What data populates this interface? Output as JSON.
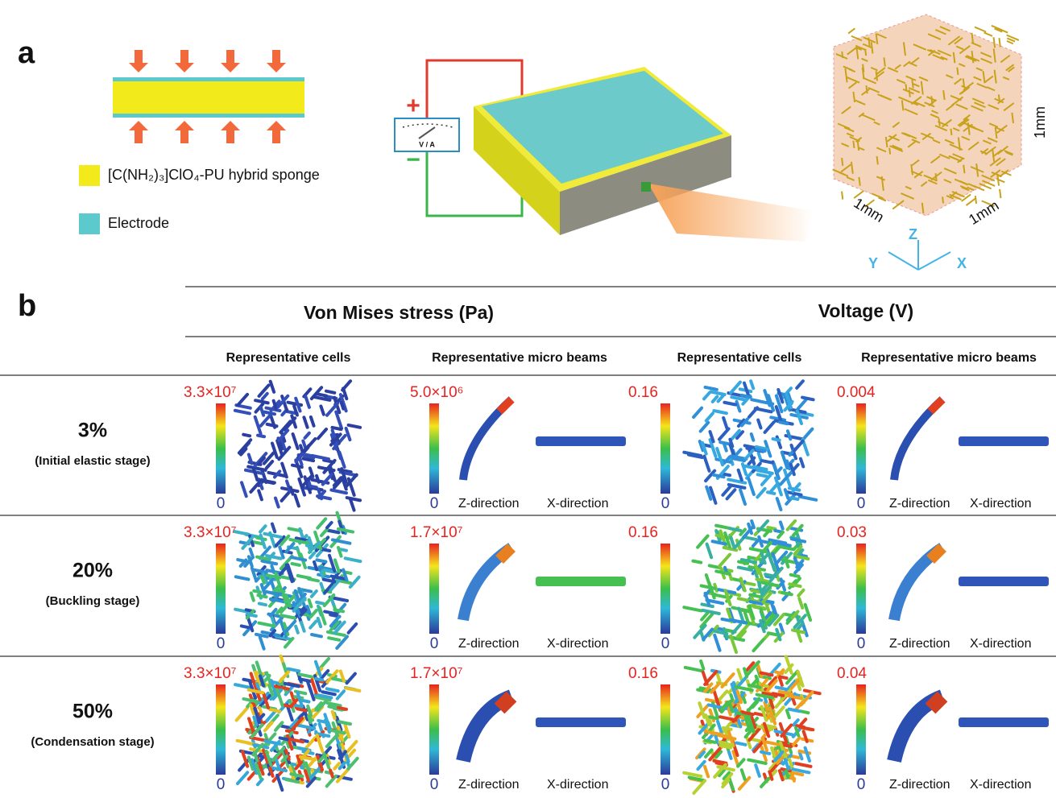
{
  "panel_a": {
    "label": "a",
    "legend": [
      "[C(NH₂)₃]ClO₄-PU hybrid sponge",
      "Electrode"
    ],
    "meter": {
      "plus": "+",
      "minus": "−",
      "label": "V / A"
    },
    "cube": {
      "edges": [
        "1mm",
        "1mm",
        "1mm"
      ],
      "axes": [
        "Z",
        "Y",
        "X"
      ]
    }
  },
  "panel_b": {
    "label": "b",
    "groups": [
      "Von Mises stress (Pa)",
      "Voltage (V)"
    ],
    "columns": [
      "Representative cells",
      "Representative micro beams",
      "Representative cells",
      "Representative micro beams"
    ],
    "directions": [
      "Z-direction",
      "X-direction"
    ],
    "rows": [
      {
        "strain": "3%",
        "stage": "(Initial elastic stage)",
        "scales": [
          {
            "max": "3.3×10⁷",
            "min": "0"
          },
          {
            "max": "5.0×10⁶",
            "min": "0"
          },
          {
            "max": "0.16",
            "min": "0"
          },
          {
            "max": "0.004",
            "min": "0"
          }
        ]
      },
      {
        "strain": "20%",
        "stage": "(Buckling stage)",
        "scales": [
          {
            "max": "3.3×10⁷",
            "min": "0"
          },
          {
            "max": "1.7×10⁷",
            "min": "0"
          },
          {
            "max": "0.16",
            "min": "0"
          },
          {
            "max": "0.03",
            "min": "0"
          }
        ]
      },
      {
        "strain": "50%",
        "stage": "(Condensation  stage)",
        "scales": [
          {
            "max": "3.3×10⁷",
            "min": "0"
          },
          {
            "max": "1.7×10⁷",
            "min": "0"
          },
          {
            "max": "0.16",
            "min": "0"
          },
          {
            "max": "0.04",
            "min": "0"
          }
        ]
      }
    ]
  }
}
